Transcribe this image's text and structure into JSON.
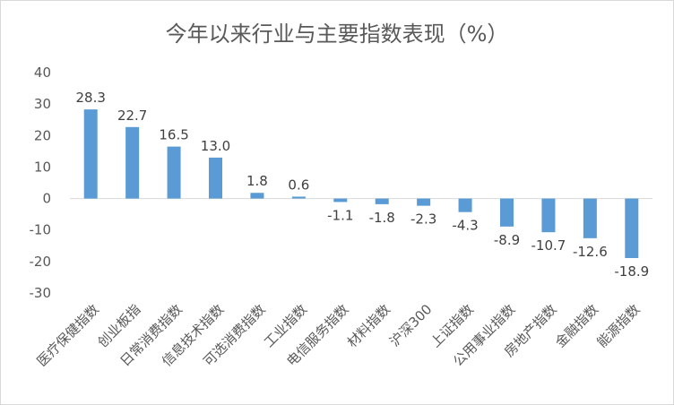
{
  "chart_data": {
    "type": "bar",
    "title": "今年以来行业与主要指数表现（%）",
    "categories": [
      "医疗保健指数",
      "创业板指",
      "日常消费指数",
      "信息技术指数",
      "可选消费指数",
      "工业指数",
      "电信服务指数",
      "材料指数",
      "沪深300",
      "上证指数",
      "公用事业指数",
      "房地产指数",
      "金融指数",
      "能源指数"
    ],
    "values": [
      28.3,
      22.7,
      16.5,
      13.0,
      1.8,
      0.6,
      -1.1,
      -1.8,
      -2.3,
      -4.3,
      -8.9,
      -10.7,
      -12.6,
      -18.9
    ],
    "data_labels": [
      "28.3",
      "22.7",
      "16.5",
      "13.0",
      "1.8",
      "0.6",
      "-1.1",
      "-1.8",
      "-2.3",
      "-4.3",
      "-8.9",
      "-10.7",
      "-12.6",
      "-18.9"
    ],
    "ylim": [
      -30,
      40
    ],
    "yticks": [
      40,
      30,
      20,
      10,
      0,
      -10,
      -20,
      -30
    ],
    "xlabel": "",
    "ylabel": "",
    "grid": false,
    "legend": false,
    "bar_color": "#5b9bd5",
    "axis_color": "#d9d9d9"
  }
}
